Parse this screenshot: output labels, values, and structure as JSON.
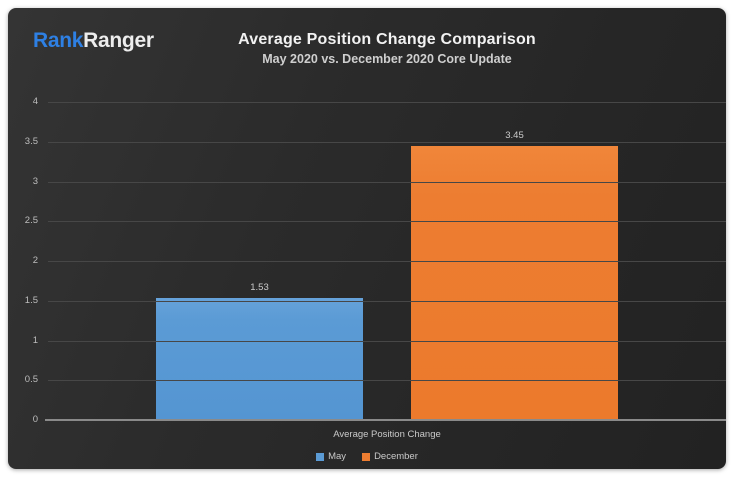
{
  "logo": {
    "part1": "Rank",
    "part2": "Ranger"
  },
  "header": {
    "title": "Average Position Change Comparison",
    "subtitle": "May 2020 vs. December 2020 Core Update"
  },
  "colors": {
    "logo_blue": "#2e80e4",
    "logo_white": "#ededed",
    "may_blue": "#5b9bd5",
    "december_orange": "#ed7d31",
    "background_dark": "#2b2b2b",
    "gridline": "#474747",
    "axis_line": "#8a8a8a",
    "text_light": "#c9c9c9"
  },
  "chart_data": {
    "type": "bar",
    "title": "Average Position Change Comparison",
    "subtitle": "May 2020 vs. December 2020 Core Update",
    "categories": [
      "Average Position Change"
    ],
    "series": [
      {
        "name": "May",
        "values": [
          1.53
        ],
        "color": "#5b9bd5",
        "css": "may"
      },
      {
        "name": "December",
        "values": [
          3.45
        ],
        "color": "#ed7d31",
        "css": "december"
      }
    ],
    "value_labels": [
      "1.53",
      "3.45"
    ],
    "xlabel": "Average Position Change",
    "ylabel": "",
    "ylim": [
      0,
      4
    ],
    "yticks": [
      0,
      0.5,
      1,
      1.5,
      2,
      2.5,
      3,
      3.5,
      4
    ],
    "grid": true,
    "legend_position": "bottom",
    "legend_entries": [
      "May",
      "December"
    ]
  }
}
